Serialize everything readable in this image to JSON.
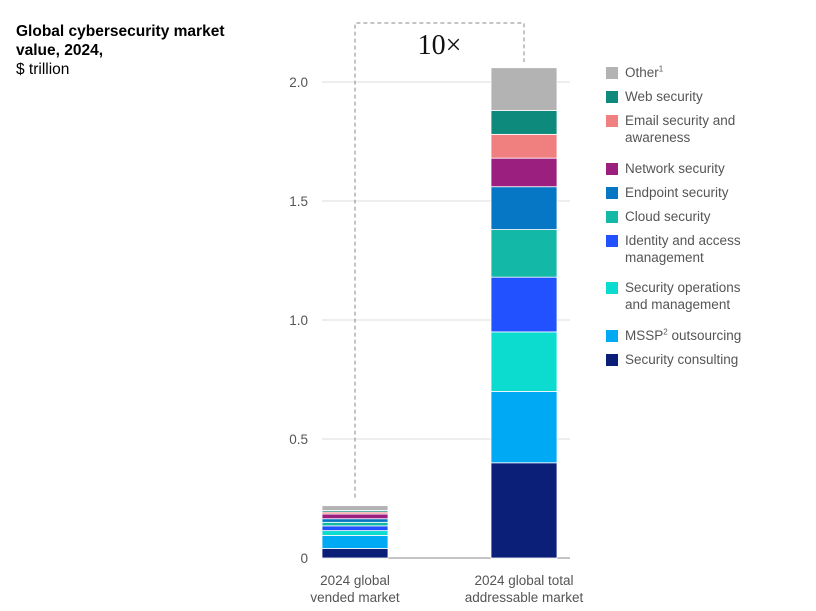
{
  "title": "Global cybersecurity market value, 2024,",
  "subtitle": "$ trillion",
  "multiplier_label": "10×",
  "chart_data": {
    "type": "bar",
    "stacked": true,
    "title": "Global cybersecurity market value, 2024,",
    "ylabel": "$ trillion",
    "ylim": [
      0,
      2.0
    ],
    "yticks": [
      0,
      0.5,
      1.0,
      1.5,
      2.0
    ],
    "ytick_labels": [
      "0",
      "0.5",
      "1.0",
      "1.5",
      "2.0"
    ],
    "categories": [
      "2024 global\nvended market",
      "2024 global total\naddressable market"
    ],
    "series": [
      {
        "name": "Security consulting",
        "color": "#0b1f78",
        "values": [
          0.04,
          0.4
        ]
      },
      {
        "name": "MSSP² outsourcing",
        "color": "#00a9f4",
        "values": [
          0.055,
          0.3
        ]
      },
      {
        "name": "Security operations\nand management",
        "color": "#0cdcd0",
        "values": [
          0.02,
          0.25
        ]
      },
      {
        "name": "Identity and access\nmanagement",
        "color": "#2251ff",
        "values": [
          0.02,
          0.23
        ]
      },
      {
        "name": "Cloud security",
        "color": "#14b8a6",
        "values": [
          0.015,
          0.2
        ]
      },
      {
        "name": "Endpoint security",
        "color": "#0677c4",
        "values": [
          0.015,
          0.18
        ]
      },
      {
        "name": "Network security",
        "color": "#9b1f7f",
        "values": [
          0.02,
          0.12
        ]
      },
      {
        "name": "Email security and\nawareness",
        "color": "#f08080",
        "values": [
          0.008,
          0.1
        ]
      },
      {
        "name": "Web security",
        "color": "#0e8a7d",
        "values": [
          0.007,
          0.1
        ]
      },
      {
        "name": "Other¹",
        "color": "#b3b3b3",
        "values": [
          0.02,
          0.18
        ]
      }
    ],
    "annotation": "10×",
    "grid": true
  },
  "legend": [
    {
      "label": "Other",
      "sup": "1",
      "color": "#b3b3b3"
    },
    {
      "label": "Web security",
      "sup": "",
      "color": "#0e8a7d"
    },
    {
      "label": "Email security and\nawareness",
      "sup": "",
      "color": "#f08080"
    },
    {
      "label": "Network security",
      "sup": "",
      "color": "#9b1f7f"
    },
    {
      "label": "Endpoint security",
      "sup": "",
      "color": "#0677c4"
    },
    {
      "label": "Cloud security",
      "sup": "",
      "color": "#14b8a6"
    },
    {
      "label": "Identity and access\nmanagement",
      "sup": "",
      "color": "#2251ff"
    },
    {
      "label": "Security operations\nand management",
      "sup": "",
      "color": "#0cdcd0"
    },
    {
      "label": "MSSP",
      "sup": "2",
      "label_after": " outsourcing",
      "color": "#00a9f4"
    },
    {
      "label": "Security consulting",
      "sup": "",
      "color": "#0b1f78"
    }
  ]
}
